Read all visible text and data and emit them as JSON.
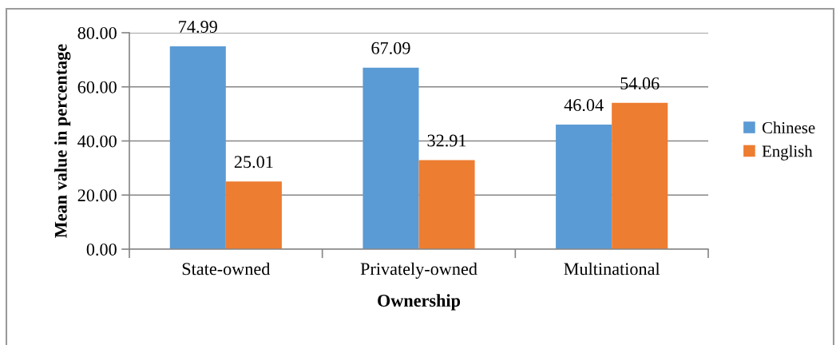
{
  "chart_data": {
    "type": "bar",
    "xlabel": "Ownership",
    "ylabel": "Mean value in percentage",
    "categories": [
      "State-owned",
      "Privately-owned",
      "Multinational"
    ],
    "series": [
      {
        "name": "Chinese",
        "color": "#5b9bd5",
        "values": [
          74.99,
          67.09,
          46.04
        ]
      },
      {
        "name": "English",
        "color": "#ed7d31",
        "values": [
          25.01,
          32.91,
          54.06
        ]
      }
    ],
    "ylim": [
      0,
      80
    ],
    "yticks": [
      {
        "value": 0,
        "label": "0.00"
      },
      {
        "value": 20,
        "label": "20.00"
      },
      {
        "value": 40,
        "label": "40.00"
      },
      {
        "value": 60,
        "label": "60.00"
      },
      {
        "value": 80,
        "label": "80.00"
      }
    ],
    "grid": "y",
    "legend": "right",
    "data_labels": true
  }
}
